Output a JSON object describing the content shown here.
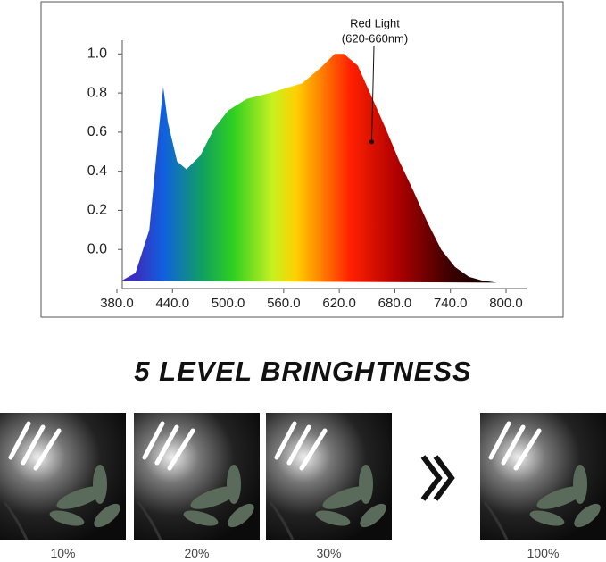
{
  "chart_data": {
    "type": "area",
    "x": [
      385,
      400,
      415,
      425,
      430,
      435,
      445,
      455,
      470,
      485,
      500,
      520,
      545,
      580,
      600,
      615,
      625,
      640,
      655,
      670,
      685,
      700,
      715,
      730,
      745,
      760,
      775,
      790
    ],
    "values": [
      -0.16,
      -0.12,
      0.1,
      0.6,
      0.83,
      0.65,
      0.45,
      0.41,
      0.48,
      0.62,
      0.71,
      0.77,
      0.8,
      0.85,
      0.93,
      1.0,
      1.0,
      0.94,
      0.78,
      0.62,
      0.45,
      0.3,
      0.14,
      0.0,
      -0.09,
      -0.14,
      -0.16,
      -0.17
    ],
    "xlim": [
      380,
      800
    ],
    "ylim": [
      -0.2,
      1.07
    ],
    "xticks": [
      {
        "value": 380,
        "label": "380.0"
      },
      {
        "value": 440,
        "label": "440.0"
      },
      {
        "value": 500,
        "label": "500.0"
      },
      {
        "value": 560,
        "label": "560.0"
      },
      {
        "value": 620,
        "label": "620.0"
      },
      {
        "value": 680,
        "label": "680.0"
      },
      {
        "value": 740,
        "label": "740.0"
      },
      {
        "value": 800,
        "label": "800.0"
      }
    ],
    "yticks": [
      {
        "value": 0,
        "label": "0.0"
      },
      {
        "value": 0.2,
        "label": "0.2"
      },
      {
        "value": 0.4,
        "label": "0.4"
      },
      {
        "value": 0.6,
        "label": "0.6"
      },
      {
        "value": 0.8,
        "label": "0.8"
      },
      {
        "value": 1,
        "label": "1.0"
      }
    ],
    "annotation": {
      "lines": [
        "Red Light",
        "(620-660nm)"
      ],
      "x": 655,
      "y": 0.55
    }
  },
  "heading": "5 LEVEL BRINGHTNESS",
  "levels": [
    {
      "label": "10%"
    },
    {
      "label": "20%"
    },
    {
      "label": "30%"
    },
    {
      "label": "100%"
    }
  ]
}
